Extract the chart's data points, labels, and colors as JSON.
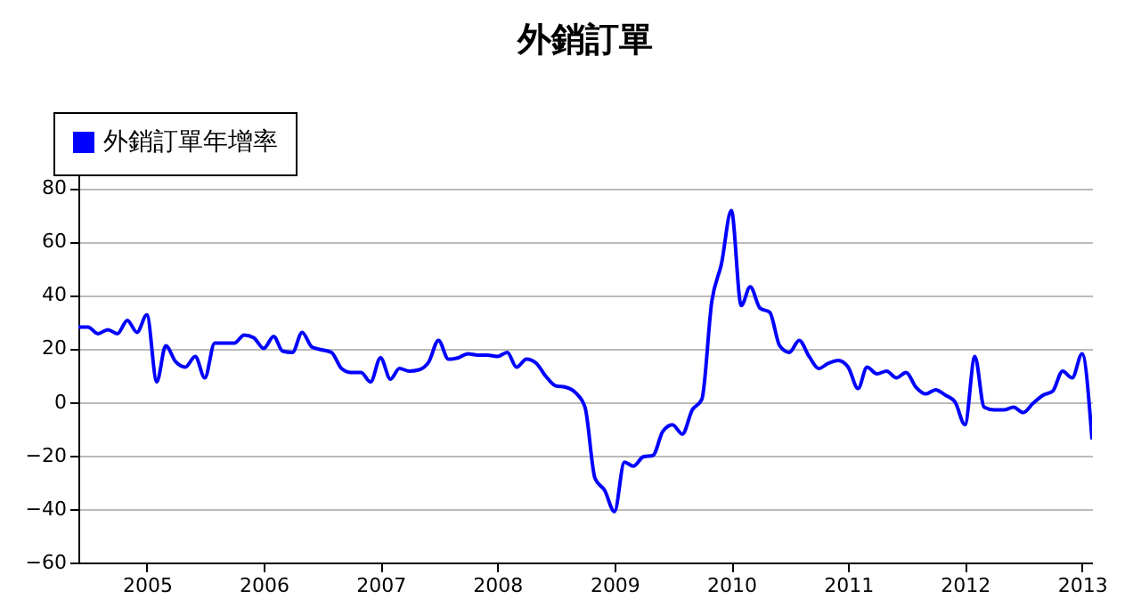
{
  "chart_data": {
    "type": "line",
    "title": "外銷訂單",
    "x": [
      "2004-06",
      "2004-07",
      "2004-08",
      "2004-09",
      "2004-10",
      "2004-11",
      "2004-12",
      "2005-01",
      "2005-02",
      "2005-03",
      "2005-04",
      "2005-05",
      "2005-06",
      "2005-07",
      "2005-08",
      "2005-09",
      "2005-10",
      "2005-11",
      "2005-12",
      "2006-01",
      "2006-02",
      "2006-03",
      "2006-04",
      "2006-05",
      "2006-06",
      "2006-07",
      "2006-08",
      "2006-09",
      "2006-10",
      "2006-11",
      "2006-12",
      "2007-01",
      "2007-02",
      "2007-03",
      "2007-04",
      "2007-05",
      "2007-06",
      "2007-07",
      "2007-08",
      "2007-09",
      "2007-10",
      "2007-11",
      "2007-12",
      "2008-01",
      "2008-02",
      "2008-03",
      "2008-04",
      "2008-05",
      "2008-06",
      "2008-07",
      "2008-08",
      "2008-09",
      "2008-10",
      "2008-11",
      "2008-12",
      "2009-01",
      "2009-02",
      "2009-03",
      "2009-04",
      "2009-05",
      "2009-06",
      "2009-07",
      "2009-08",
      "2009-09",
      "2009-10",
      "2009-11",
      "2009-12",
      "2010-01",
      "2010-02",
      "2010-03",
      "2010-04",
      "2010-05",
      "2010-06",
      "2010-07",
      "2010-08",
      "2010-09",
      "2010-10",
      "2010-11",
      "2010-12",
      "2011-01",
      "2011-02",
      "2011-03",
      "2011-04",
      "2011-05",
      "2011-06",
      "2011-07",
      "2011-08",
      "2011-09",
      "2011-10",
      "2011-11",
      "2011-12",
      "2012-01",
      "2012-02",
      "2012-03",
      "2012-04",
      "2012-05",
      "2012-06",
      "2012-07",
      "2012-08",
      "2012-09",
      "2012-10",
      "2012-11",
      "2012-12",
      "2013-01",
      "2013-02"
    ],
    "series": [
      {
        "name": "外銷訂單年增率",
        "color": "#0000ff",
        "values": [
          28,
          28,
          25.5,
          27,
          25.5,
          30.5,
          26,
          32.5,
          7.5,
          21,
          15,
          13,
          17,
          9,
          22,
          22,
          22,
          25,
          24,
          20,
          24.5,
          19,
          18.5,
          26,
          20.5,
          19.5,
          18.5,
          12.5,
          11,
          11,
          7.5,
          16.5,
          8.5,
          12.5,
          11.5,
          12,
          15,
          23,
          16,
          16.5,
          18,
          17.5,
          17.5,
          17,
          18.5,
          13,
          16,
          14.5,
          9.5,
          6,
          5.5,
          3.5,
          -2,
          -28.5,
          -33,
          -41,
          -22.5,
          -24,
          -20.5,
          -20,
          -11,
          -8.5,
          -12,
          -3,
          1,
          37.5,
          51.5,
          71.5,
          36,
          43,
          35,
          33.5,
          21,
          18.5,
          23,
          17,
          12.5,
          14.5,
          15.5,
          13,
          5,
          13,
          10.5,
          11.5,
          9,
          11,
          5.5,
          3,
          4.5,
          2.5,
          0,
          -8.5,
          17,
          -2,
          -3,
          -3,
          -2,
          -4,
          -0.5,
          2.5,
          4,
          11.5,
          9,
          18,
          -14
        ]
      }
    ],
    "xlim": [
      "2004-06",
      "2013-02"
    ],
    "xticks": [
      "2005",
      "2006",
      "2007",
      "2008",
      "2009",
      "2010",
      "2011",
      "2012",
      "2013"
    ],
    "ylim": [
      -60,
      85
    ],
    "yticks": [
      -60,
      -40,
      -20,
      0,
      20,
      40,
      60,
      80
    ],
    "grid": "y",
    "legend": "top left"
  }
}
